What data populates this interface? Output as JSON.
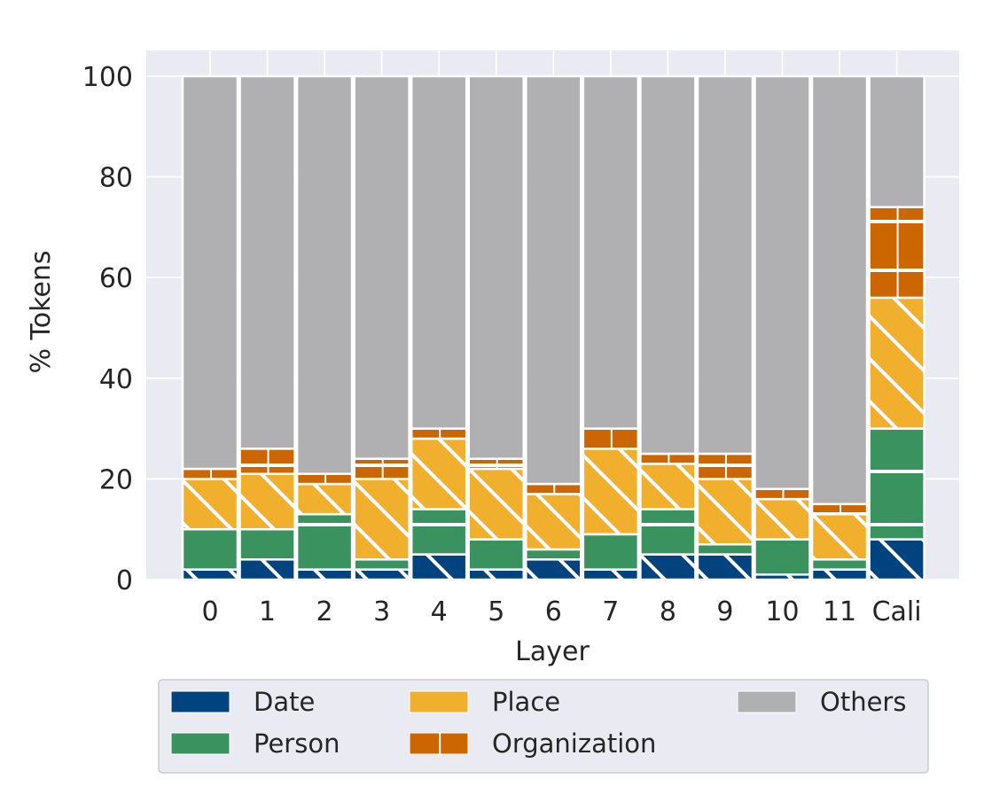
{
  "chart_data": {
    "type": "bar",
    "stacked": true,
    "title": "",
    "xlabel": "Layer",
    "ylabel": "% Tokens",
    "ylim": [
      0,
      100
    ],
    "yticks": [
      0,
      20,
      40,
      60,
      80,
      100
    ],
    "grid": true,
    "legend_placement": "below",
    "categories": [
      "0",
      "1",
      "2",
      "3",
      "4",
      "5",
      "6",
      "7",
      "8",
      "9",
      "10",
      "11",
      "Cali"
    ],
    "series": [
      {
        "name": "Date",
        "color": "#00437f",
        "hatch": "diagonal",
        "values": [
          2,
          4,
          2,
          2,
          5,
          2,
          4,
          2,
          5,
          5,
          1,
          2,
          8
        ]
      },
      {
        "name": "Person",
        "color": "#3a935f",
        "hatch": "horizontal",
        "values": [
          8,
          6,
          11,
          2,
          9,
          6,
          2,
          7,
          9,
          2,
          7,
          2,
          22
        ]
      },
      {
        "name": "Place",
        "color": "#f0b02e",
        "hatch": "diagonal",
        "values": [
          10,
          11,
          6,
          16,
          14,
          14,
          11,
          17,
          9,
          13,
          8,
          9,
          26
        ]
      },
      {
        "name": "Organization",
        "color": "#cc6600",
        "hatch": "vertical",
        "values": [
          2,
          5,
          2,
          4,
          2,
          2,
          2,
          4,
          2,
          5,
          2,
          2,
          18
        ]
      },
      {
        "name": "Others",
        "color": "#b0b0b2",
        "hatch": "none",
        "values": [
          78,
          74,
          79,
          76,
          70,
          76,
          81,
          70,
          75,
          75,
          82,
          85,
          26
        ]
      }
    ]
  }
}
